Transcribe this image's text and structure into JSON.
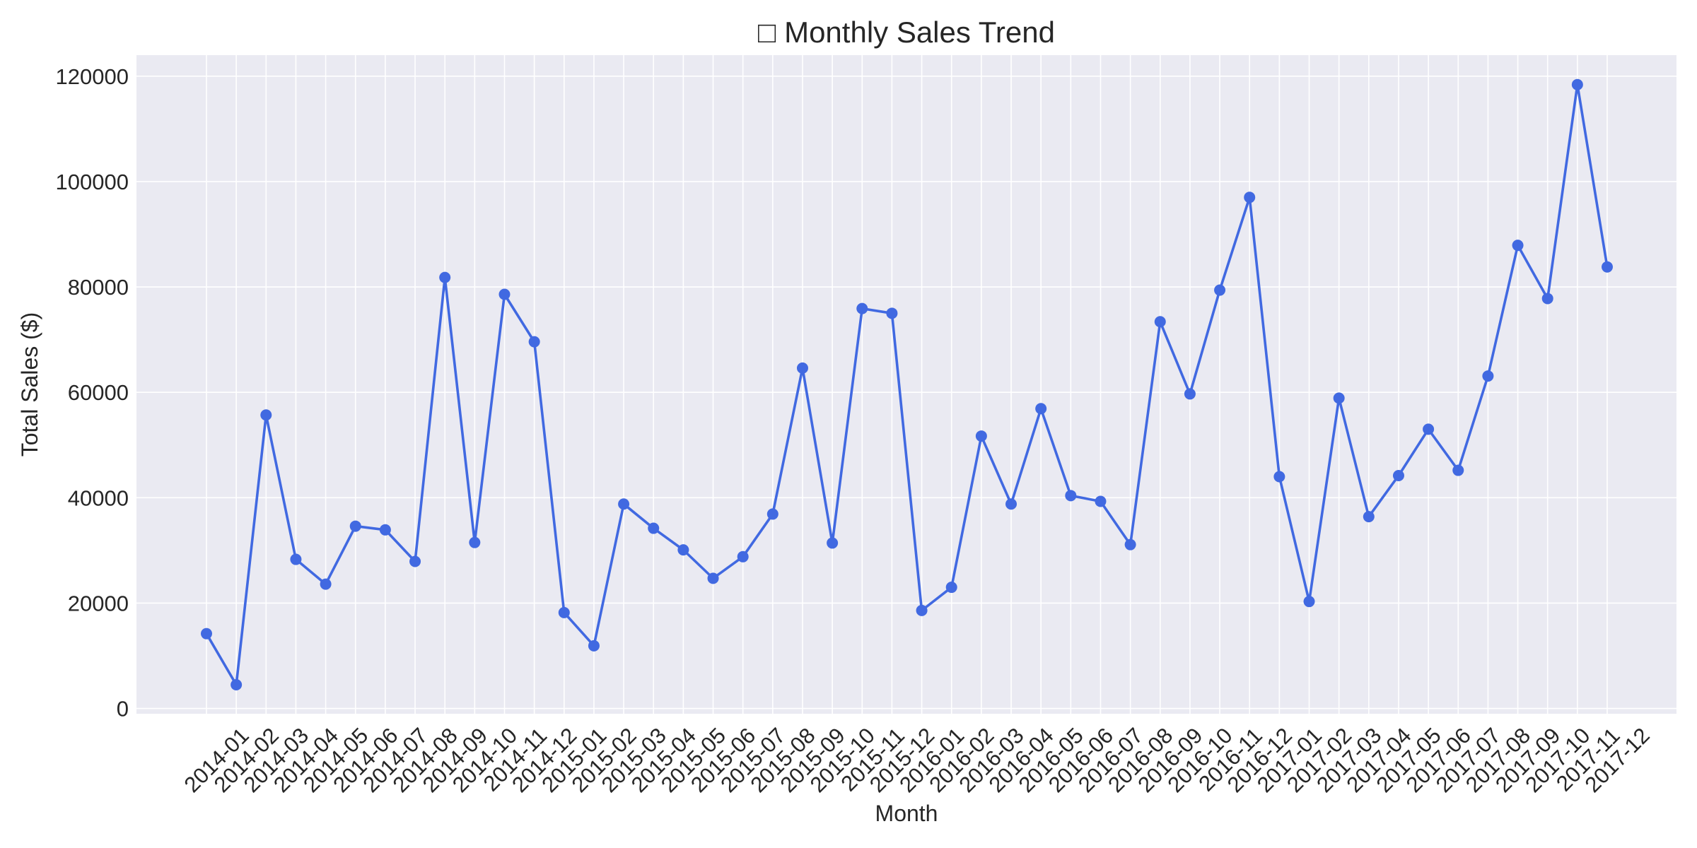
{
  "chart_data": {
    "type": "line",
    "title": "□ Monthly Sales Trend",
    "xlabel": "Month",
    "ylabel": "Total Sales ($)",
    "ylim": [
      -1000,
      124000
    ],
    "yticks": [
      0,
      20000,
      40000,
      60000,
      80000,
      100000,
      120000
    ],
    "grid": true,
    "categories": [
      "2014-01",
      "2014-02",
      "2014-03",
      "2014-04",
      "2014-05",
      "2014-06",
      "2014-07",
      "2014-08",
      "2014-09",
      "2014-10",
      "2014-11",
      "2014-12",
      "2015-01",
      "2015-02",
      "2015-03",
      "2015-04",
      "2015-05",
      "2015-06",
      "2015-07",
      "2015-08",
      "2015-09",
      "2015-10",
      "2015-11",
      "2015-12",
      "2016-01",
      "2016-02",
      "2016-03",
      "2016-04",
      "2016-05",
      "2016-06",
      "2016-07",
      "2016-08",
      "2016-09",
      "2016-10",
      "2016-11",
      "2016-12",
      "2017-01",
      "2017-02",
      "2017-03",
      "2017-04",
      "2017-05",
      "2017-06",
      "2017-07",
      "2017-08",
      "2017-09",
      "2017-10",
      "2017-11",
      "2017-12"
    ],
    "series": [
      {
        "name": "Total Sales",
        "color": "#4169e1",
        "values": [
          14200,
          4500,
          55700,
          28300,
          23600,
          34600,
          33900,
          27900,
          81800,
          31500,
          78600,
          69600,
          18200,
          11900,
          38800,
          34200,
          30100,
          24700,
          28800,
          36900,
          64600,
          31400,
          75900,
          75000,
          18600,
          23000,
          51700,
          38800,
          56900,
          40400,
          39300,
          31100,
          73400,
          59700,
          79400,
          97000,
          44000,
          20300,
          58900,
          36400,
          44200,
          53000,
          45200,
          63100,
          87900,
          77800,
          118400,
          83800
        ]
      }
    ]
  },
  "colors": {
    "plot_background": "#eaeaf2",
    "grid": "#ffffff",
    "line": "#4169e1",
    "text": "#262626"
  }
}
